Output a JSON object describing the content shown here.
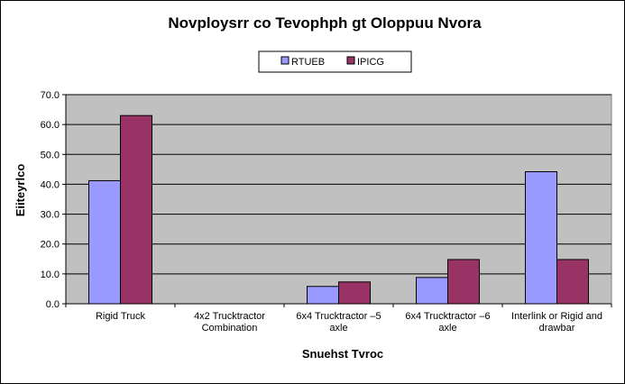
{
  "chart_data": {
    "type": "bar",
    "title": "Novploysrr co Tevophph gt Oloppuu Nvora",
    "xlabel": "Snuehst Tvroc",
    "ylabel": "Eiiteyrlco",
    "categories": [
      [
        "Rigid Truck"
      ],
      [
        "4x2 Trucktractor",
        "Combination"
      ],
      [
        "6x4 Trucktractor –5",
        "axle"
      ],
      [
        "6x4 Trucktractor –6",
        "axle"
      ],
      [
        "Interlink or Rigid and",
        "drawbar"
      ]
    ],
    "series": [
      {
        "name": "RTUEB",
        "color": "#9999ff",
        "values": [
          41.2,
          0,
          5.8,
          8.8,
          44.2
        ]
      },
      {
        "name": "IPICG",
        "color": "#993366",
        "values": [
          63.0,
          0,
          7.3,
          14.8,
          14.8
        ]
      }
    ],
    "ylim": [
      0,
      70
    ],
    "yticks": [
      "0.0",
      "10.0",
      "20.0",
      "30.0",
      "40.0",
      "50.0",
      "60.0",
      "70.0"
    ],
    "grid": true,
    "plot_background": "#c0c0c0",
    "legend_position": "top-center"
  }
}
